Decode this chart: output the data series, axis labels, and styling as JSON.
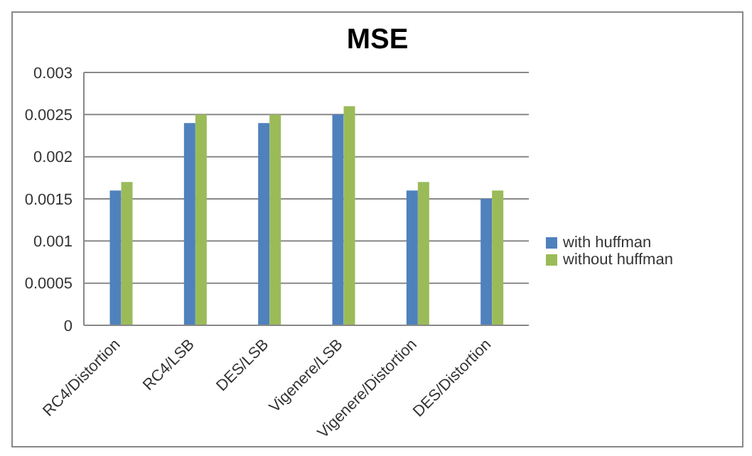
{
  "chart_data": {
    "type": "bar",
    "title": "MSE",
    "categories": [
      "RC4/Distortion",
      "RC4/LSB",
      "DES/LSB",
      "Vigenere/LSB",
      "Vigenere/Distortion",
      "DES/Distortion"
    ],
    "series": [
      {
        "name": "with huffman",
        "color": "#4f81bd",
        "values": [
          0.0016,
          0.0024,
          0.0024,
          0.0025,
          0.0016,
          0.0015
        ]
      },
      {
        "name": "without huffman",
        "color": "#9bbb59",
        "values": [
          0.0017,
          0.0025,
          0.0025,
          0.0026,
          0.0017,
          0.0016
        ]
      }
    ],
    "ylim": [
      0,
      0.003
    ],
    "yticks": [
      0,
      0.0005,
      0.001,
      0.0015,
      0.002,
      0.0025,
      0.003
    ],
    "grid": "y",
    "legend": "right"
  }
}
